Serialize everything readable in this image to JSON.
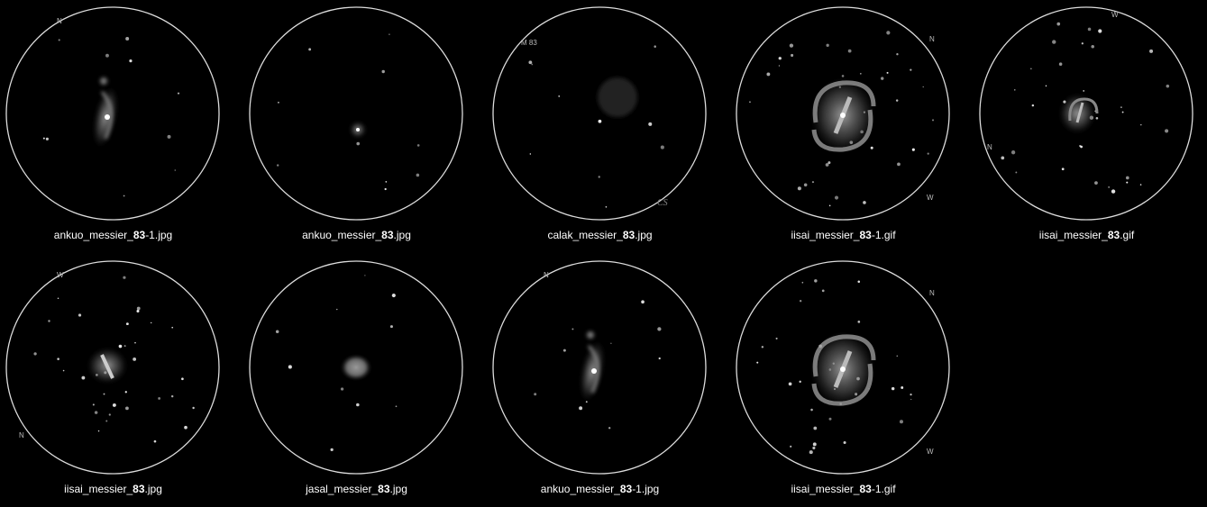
{
  "gallery": {
    "items": [
      {
        "id": "t1",
        "prefix": "ankuo_messier_",
        "bold": "83",
        "suffix": "-1.jpg",
        "type": "spiral-vertical",
        "labels": [
          {
            "text": "N",
            "pos": "top-left"
          }
        ]
      },
      {
        "id": "t2",
        "prefix": "ankuo_messier_",
        "bold": "83",
        "suffix": ".jpg",
        "type": "small-core",
        "labels": []
      },
      {
        "id": "t3",
        "prefix": "calak_messier_",
        "bold": "83",
        "suffix": ".jpg",
        "type": "faint-disk",
        "labels": [
          {
            "text": "M 83",
            "pos": "top-left-inside"
          }
        ],
        "signature": "CS"
      },
      {
        "id": "t4",
        "prefix": "iisai_messier_",
        "bold": "83",
        "suffix": "-1.gif",
        "type": "barred-spiral-large",
        "labels": [
          {
            "text": "N",
            "pos": "top-right"
          },
          {
            "text": "W",
            "pos": "bottom-right"
          }
        ]
      },
      {
        "id": "t5",
        "prefix": "iisai_messier_",
        "bold": "83",
        "suffix": ".gif",
        "type": "barred-spiral-small",
        "labels": [
          {
            "text": "W",
            "pos": "top-center"
          },
          {
            "text": "N",
            "pos": "left"
          }
        ]
      },
      {
        "id": "t6",
        "prefix": "iisai_messier_",
        "bold": "83",
        "suffix": ".jpg",
        "type": "barred-blob",
        "labels": [
          {
            "text": "W",
            "pos": "top-left"
          },
          {
            "text": "N",
            "pos": "bottom-left"
          }
        ]
      },
      {
        "id": "t7",
        "prefix": "jasal_messier_",
        "bold": "83",
        "suffix": ".jpg",
        "type": "oval-glow",
        "labels": []
      },
      {
        "id": "t8",
        "prefix": "ankuo_messier_",
        "bold": "83",
        "suffix": "-1.jpg",
        "type": "spiral-vertical",
        "labels": [
          {
            "text": "N",
            "pos": "top-left"
          }
        ]
      },
      {
        "id": "t9",
        "prefix": "iisai_messier_",
        "bold": "83",
        "suffix": "-1.gif",
        "type": "barred-spiral-large",
        "labels": [
          {
            "text": "N",
            "pos": "top-right"
          },
          {
            "text": "W",
            "pos": "bottom-right"
          }
        ]
      }
    ]
  }
}
